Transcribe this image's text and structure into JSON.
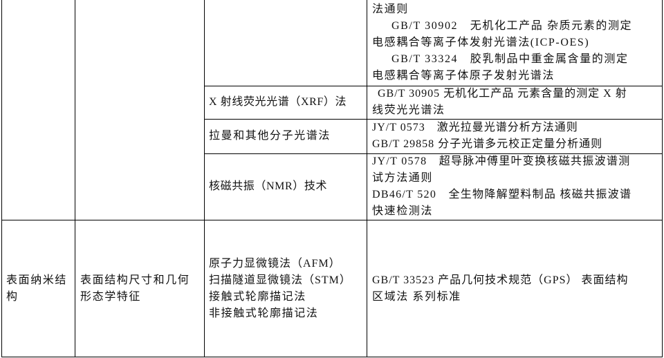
{
  "table": {
    "row_continuation": {
      "standards_lines": [
        "法通则",
        "GB/T 30902　无机化工产品 杂质元素的测定",
        "电感耦合等离子体发射光谱法(ICP-OES)",
        "GB/T 33324　胶乳制品中重金属含量的测定",
        "电感耦合等离子体原子发射光谱法"
      ]
    },
    "row_xrf": {
      "method": "X 射线荧光光谱（XRF）法",
      "standards_lines": [
        " GB/T 30905 无机化工产品 元素含量的测定 X 射",
        "线荧光光谱法"
      ]
    },
    "row_raman": {
      "method": "拉曼和其他分子光谱法",
      "standards_lines": [
        "JY/T 0573　激光拉曼光谱分析方法通则",
        "GB/T 29858 分子光谱多元校正定量分析通则"
      ]
    },
    "row_nmr": {
      "method": "核磁共振（NMR）技术",
      "standards_lines": [
        "JY/T 0578　超导脉冲傅里叶变换核磁共振波谱测",
        "试方法通则",
        "DB46/T 520　全生物降解塑料制品 核磁共振波谱",
        "快速检测法"
      ]
    },
    "row_surface": {
      "category_lines": [
        "表面纳米结",
        "构"
      ],
      "property_lines": [
        "表面结构尺寸和几何",
        "形态学特征"
      ],
      "method_lines": [
        "原子力显微镜法（AFM）",
        "扫描隧道显微镜法（STM）",
        "接触式轮廓描记法",
        "非接触式轮廓描记法"
      ],
      "standards_lines": [
        "GB/T 33523 产品几何技术规范（GPS） 表面结构",
        "区域法 系列标准"
      ]
    }
  }
}
